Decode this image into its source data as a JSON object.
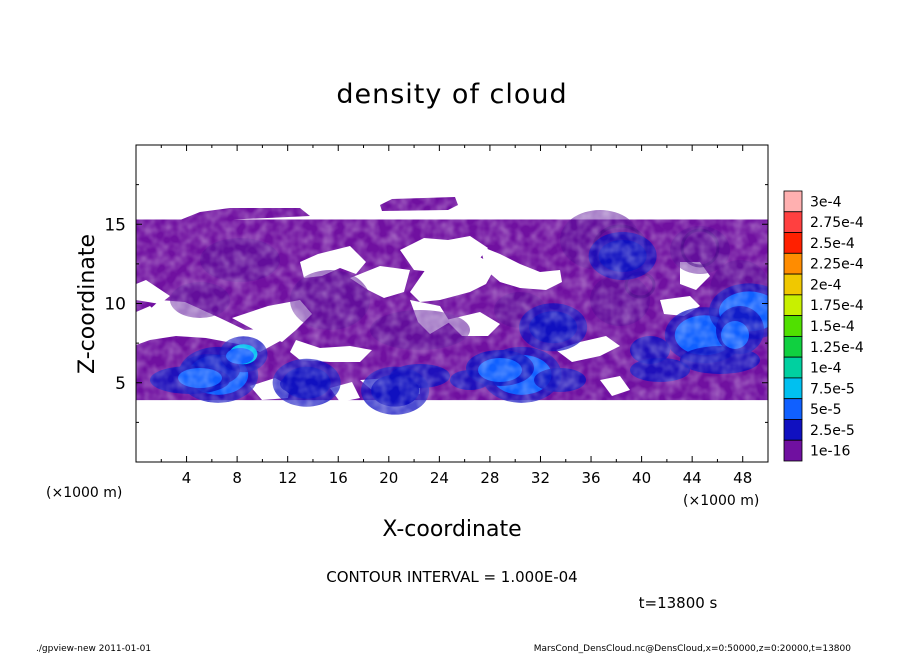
{
  "chart_data": {
    "type": "heatmap",
    "title": "density of cloud",
    "xlabel": "X-coordinate",
    "ylabel": "Z-coordinate",
    "x_unit": "(×1000 m)",
    "z_unit": "(×1000 m)",
    "xlim": [
      0,
      50
    ],
    "ylim": [
      0,
      20
    ],
    "x_ticks": [
      4,
      8,
      12,
      16,
      20,
      24,
      28,
      32,
      36,
      40,
      44,
      48
    ],
    "y_ticks": [
      5,
      10,
      15
    ],
    "x_tick_labels": [
      "4",
      "8",
      "12",
      "16",
      "20",
      "24",
      "28",
      "32",
      "36",
      "40",
      "44",
      "48"
    ],
    "y_tick_labels": [
      "5",
      "10",
      "15"
    ],
    "colorbar": {
      "levels": [
        "3e-4",
        "2.75e-4",
        "2.5e-4",
        "2.25e-4",
        "2e-4",
        "1.75e-4",
        "1.5e-4",
        "1.25e-4",
        "1e-4",
        "7.5e-5",
        "5e-5",
        "2.5e-5",
        "1e-16"
      ],
      "colors": [
        "#ffb0b0",
        "#ff4040",
        "#ff2000",
        "#ff8c00",
        "#f0c800",
        "#c8f000",
        "#50e000",
        "#10d040",
        "#00d0a0",
        "#00c0f0",
        "#1060ff",
        "#1010c0",
        "#7010a0"
      ]
    },
    "regions": {
      "cloud_top_z": 15.3,
      "cloud_base_z": 3.9,
      "blobs": [
        {
          "x": 6.5,
          "z": 5.5,
          "level": "5e-5"
        },
        {
          "x": 8.5,
          "z": 6.8,
          "level": "7.5e-5"
        },
        {
          "x": 13.5,
          "z": 5.0,
          "level": "2.5e-5"
        },
        {
          "x": 20.5,
          "z": 4.5,
          "level": "2.5e-5"
        },
        {
          "x": 30.5,
          "z": 5.5,
          "level": "5e-5"
        },
        {
          "x": 33.0,
          "z": 8.5,
          "level": "2.5e-5"
        },
        {
          "x": 38.5,
          "z": 13.0,
          "level": "2.5e-5"
        },
        {
          "x": 45.0,
          "z": 8.0,
          "level": "5e-5"
        },
        {
          "x": 48.5,
          "z": 9.5,
          "level": "5e-5"
        }
      ]
    },
    "contour_interval": "CONTOUR INTERVAL = 1.000E-04",
    "time_label": "t=13800 s"
  },
  "footer": {
    "left": "./gpview-new   2011-01-01",
    "right": "MarsCond_DensCloud.nc@DensCloud,x=0:50000,z=0:20000,t=13800"
  }
}
